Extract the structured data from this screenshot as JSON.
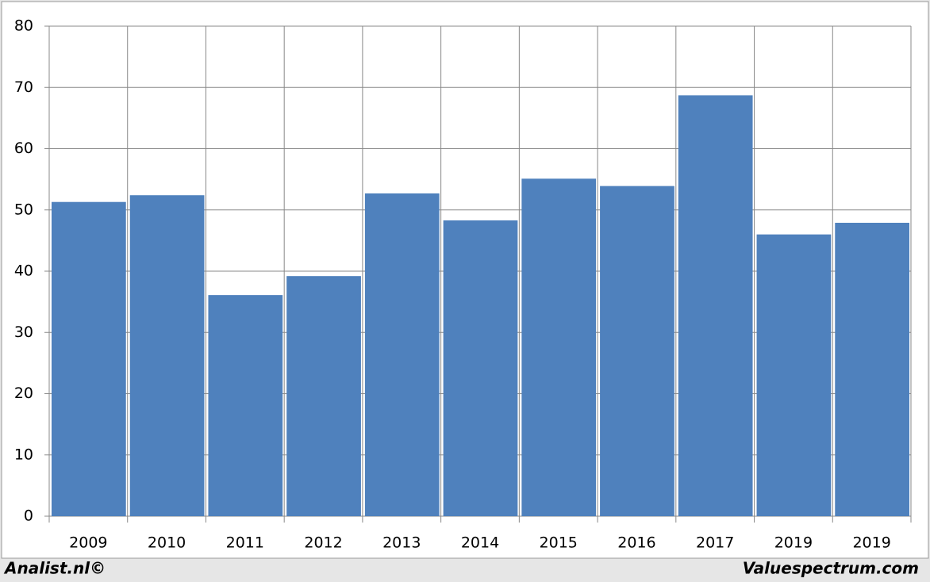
{
  "chart_data": {
    "type": "bar",
    "categories": [
      "2009",
      "2010",
      "2011",
      "2012",
      "2013",
      "2014",
      "2015",
      "2016",
      "2017",
      "2019",
      "2019"
    ],
    "values": [
      51.3,
      52.4,
      36.1,
      39.2,
      52.7,
      48.3,
      55.1,
      53.9,
      68.7,
      46.0,
      47.9
    ],
    "color": "#4f81bd",
    "ylim": [
      0,
      80
    ],
    "yticks": [
      0,
      10,
      20,
      30,
      40,
      50,
      60,
      70,
      80
    ],
    "grid": true,
    "annotations": [
      "Analist.nl©",
      "Valuespectrum.com"
    ]
  }
}
